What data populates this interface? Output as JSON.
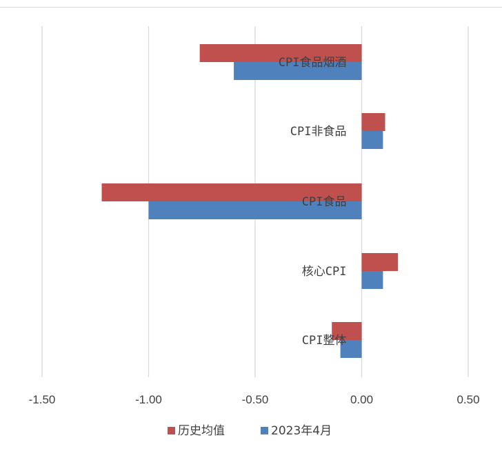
{
  "chart_data": {
    "type": "bar",
    "orientation": "horizontal",
    "categories": [
      "CPI食品烟酒",
      "CPI非食品",
      "CPI食品",
      "核心CPI",
      "CPI整体"
    ],
    "series": [
      {
        "name": "历史均值",
        "color": "#c0504d",
        "values": [
          -0.76,
          0.11,
          -1.22,
          0.17,
          -0.14
        ]
      },
      {
        "name": "2023年4月",
        "color": "#4f81bd",
        "values": [
          -0.6,
          0.1,
          -1.0,
          0.1,
          -0.1
        ]
      }
    ],
    "xlim": [
      -1.5,
      0.5
    ],
    "xticks": [
      "-1.50",
      "-1.00",
      "-0.50",
      "0.00",
      "0.50"
    ],
    "grid": "vertical",
    "legend": "bottom",
    "title": "",
    "xlabel": "",
    "ylabel": ""
  }
}
